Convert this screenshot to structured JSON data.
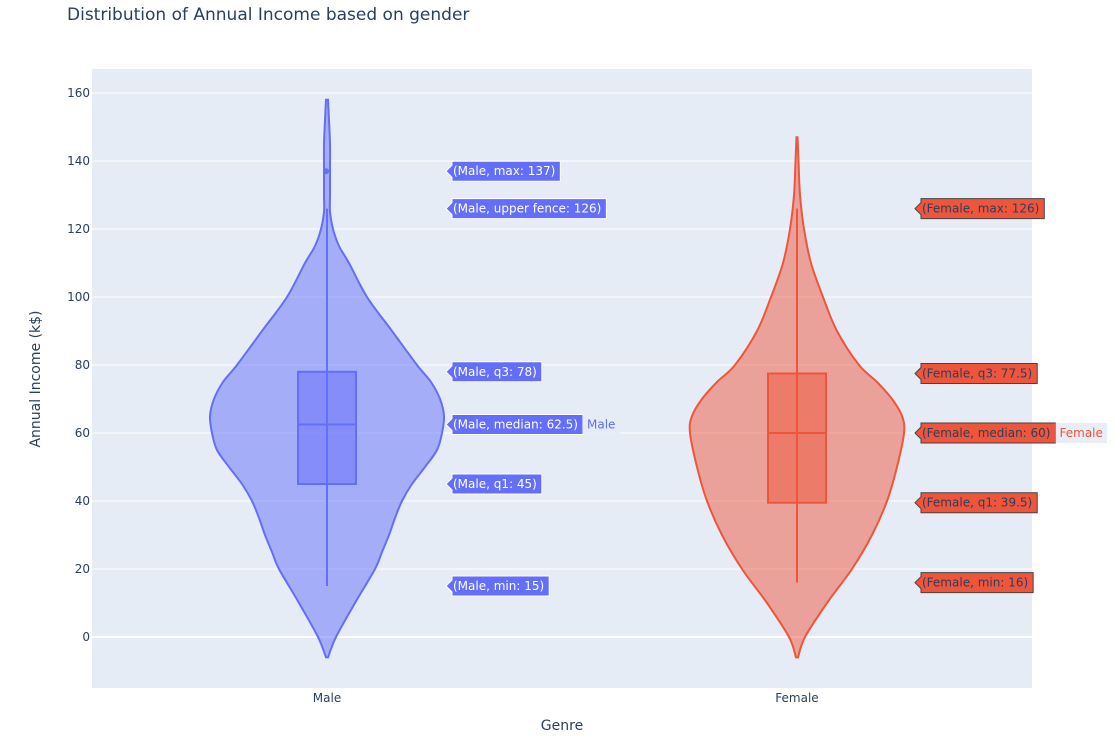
{
  "chart_data": {
    "type": "violin",
    "title": "Distribution of Annual Income based on gender",
    "xlabel": "Genre",
    "ylabel": "Annual Income (k$)",
    "ylim": [
      -15,
      167
    ],
    "yticks": [
      0,
      20,
      40,
      60,
      80,
      100,
      120,
      140,
      160
    ],
    "categories": [
      "Male",
      "Female"
    ],
    "grid": true,
    "series": [
      {
        "name": "Male",
        "color": "#636efa",
        "stats": {
          "min": 15,
          "q1": 45,
          "median": 62.5,
          "q3": 78,
          "upper_fence": 126,
          "max": 137
        },
        "outliers": [
          137
        ],
        "density_extent": [
          -6,
          158
        ],
        "profile": [
          [
            -6,
            1
          ],
          [
            0,
            9
          ],
          [
            10,
            28
          ],
          [
            20,
            48
          ],
          [
            25,
            55
          ],
          [
            30,
            62
          ],
          [
            35,
            68
          ],
          [
            40,
            75
          ],
          [
            45,
            85
          ],
          [
            50,
            98
          ],
          [
            55,
            110
          ],
          [
            60,
            115
          ],
          [
            65,
            117
          ],
          [
            70,
            113
          ],
          [
            75,
            104
          ],
          [
            80,
            90
          ],
          [
            90,
            65
          ],
          [
            100,
            40
          ],
          [
            110,
            22
          ],
          [
            115,
            12
          ],
          [
            120,
            6
          ],
          [
            125,
            3
          ],
          [
            130,
            3
          ],
          [
            137,
            3
          ],
          [
            145,
            3
          ],
          [
            152,
            2
          ],
          [
            158,
            1
          ]
        ],
        "hover_labels": [
          {
            "text": "(Male, max: 137)",
            "value": 137
          },
          {
            "text": "(Male, upper fence: 126)",
            "value": 126
          },
          {
            "text": "(Male, q3: 78)",
            "value": 78
          },
          {
            "text": "(Male, median: 62.5)",
            "value": 62.5
          },
          {
            "text": "(Male, q1: 45)",
            "value": 45
          },
          {
            "text": "(Male, min: 15)",
            "value": 15
          }
        ],
        "trace_label": "Male"
      },
      {
        "name": "Female",
        "color": "#ef553b",
        "stats": {
          "min": 16,
          "q1": 39.5,
          "median": 60,
          "q3": 77.5,
          "max": 126
        },
        "outliers": [],
        "density_extent": [
          -6,
          147
        ],
        "profile": [
          [
            -6,
            1
          ],
          [
            0,
            8
          ],
          [
            10,
            30
          ],
          [
            20,
            55
          ],
          [
            30,
            75
          ],
          [
            40,
            90
          ],
          [
            50,
            100
          ],
          [
            60,
            107
          ],
          [
            65,
            105
          ],
          [
            70,
            95
          ],
          [
            75,
            80
          ],
          [
            80,
            62
          ],
          [
            90,
            40
          ],
          [
            100,
            26
          ],
          [
            110,
            14
          ],
          [
            120,
            7
          ],
          [
            130,
            3
          ],
          [
            140,
            1.5
          ],
          [
            147,
            0.5
          ]
        ],
        "hover_labels": [
          {
            "text": "(Female, max: 126)",
            "value": 126
          },
          {
            "text": "(Female, q3: 77.5)",
            "value": 77.5
          },
          {
            "text": "(Female, median: 60)",
            "value": 60
          },
          {
            "text": "(Female, q1: 39.5)",
            "value": 39.5
          },
          {
            "text": "(Female, min: 16)",
            "value": 16
          }
        ],
        "trace_label": "Female"
      }
    ]
  }
}
